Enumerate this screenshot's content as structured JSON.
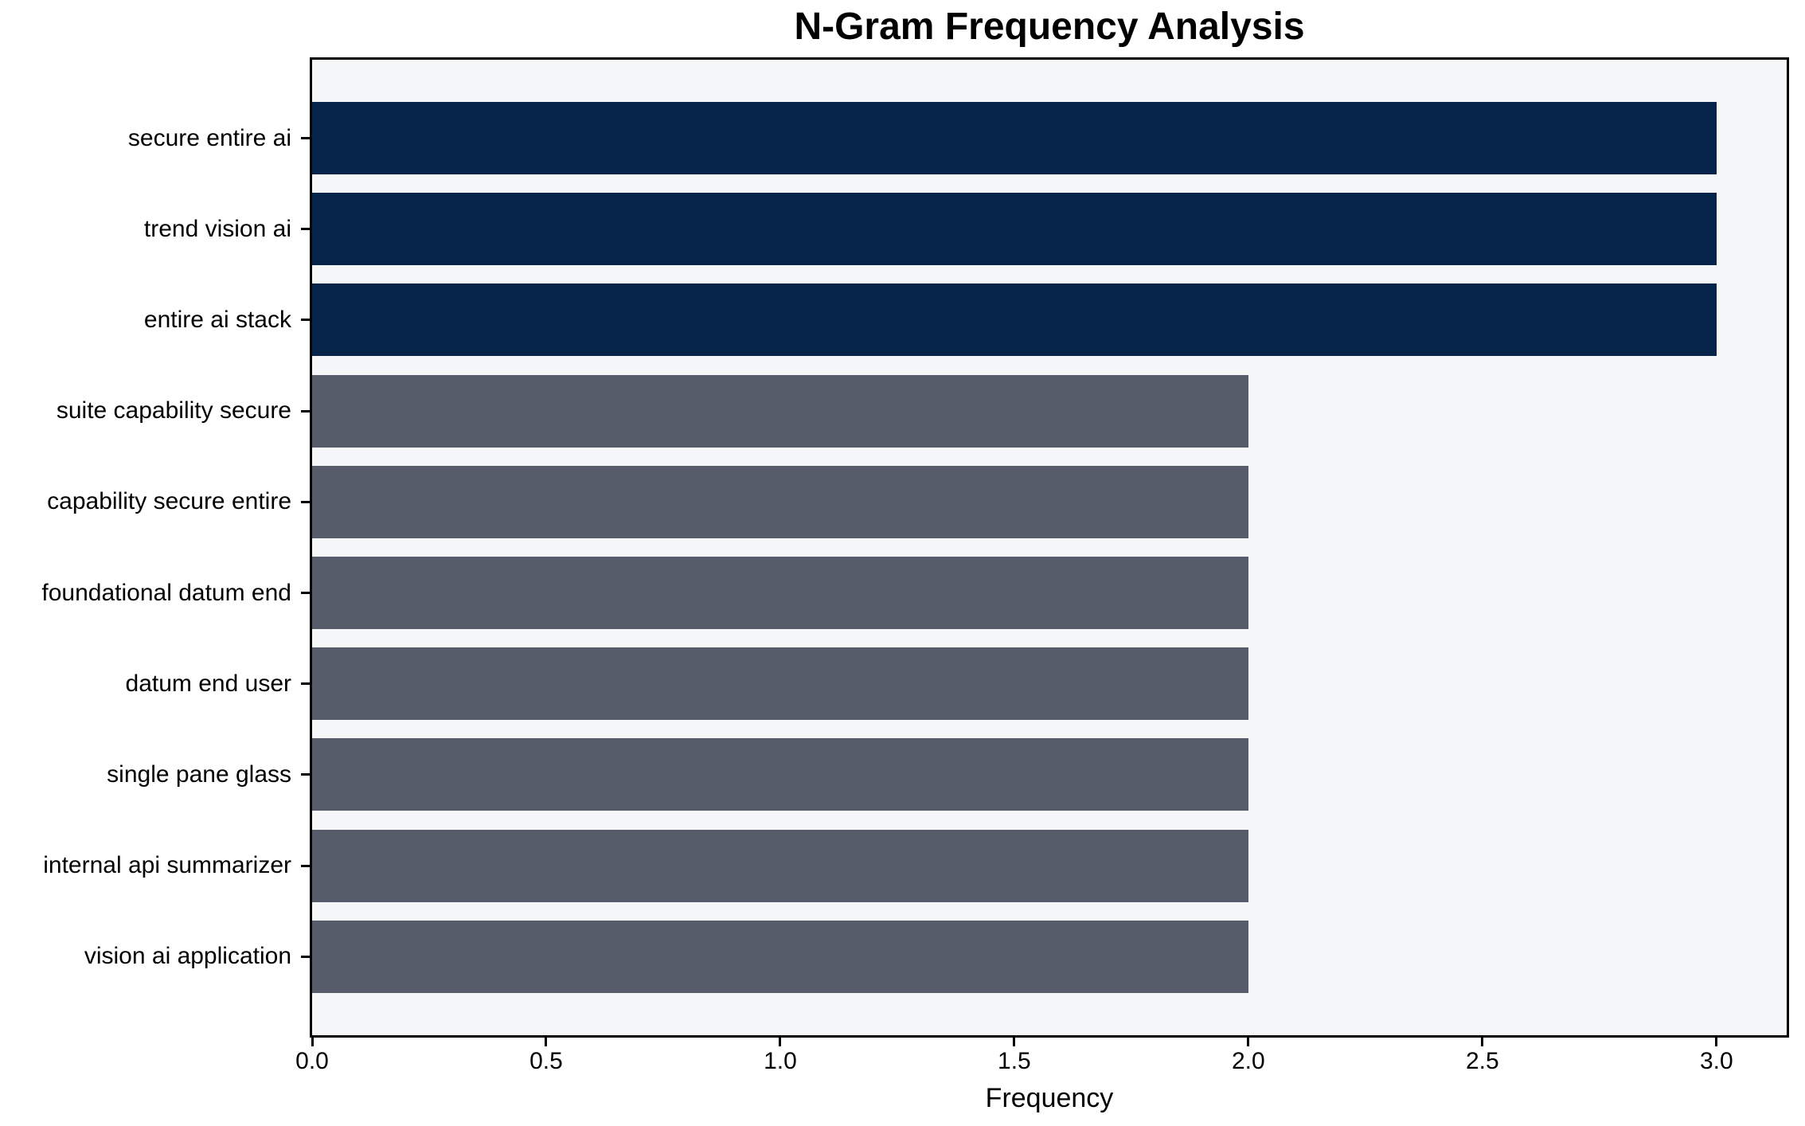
{
  "chart_data": {
    "type": "bar",
    "orientation": "horizontal",
    "title": "N-Gram Frequency Analysis",
    "xlabel": "Frequency",
    "ylabel": "",
    "categories": [
      "secure entire ai",
      "trend vision ai",
      "entire ai stack",
      "suite capability secure",
      "capability secure entire",
      "foundational datum end",
      "datum end user",
      "single pane glass",
      "internal api summarizer",
      "vision ai application"
    ],
    "values": [
      3,
      3,
      3,
      2,
      2,
      2,
      2,
      2,
      2,
      2
    ],
    "bar_colors": [
      "#062349",
      "#062349",
      "#062349",
      "#575c6a",
      "#575c6a",
      "#575c6a",
      "#575c6a",
      "#575c6a",
      "#575c6a",
      "#575c6a"
    ],
    "x_ticks": [
      "0.0",
      "0.5",
      "1.0",
      "1.5",
      "2.0",
      "2.5",
      "3.0"
    ],
    "xlim": [
      0,
      3.15
    ],
    "grid": false,
    "legend": null,
    "colors": {
      "highlight_bar": "#062349",
      "default_bar": "#575c6a",
      "plot_background": "#f6f7f8",
      "figure_background": "#ffffff",
      "axis": "#000000"
    }
  }
}
